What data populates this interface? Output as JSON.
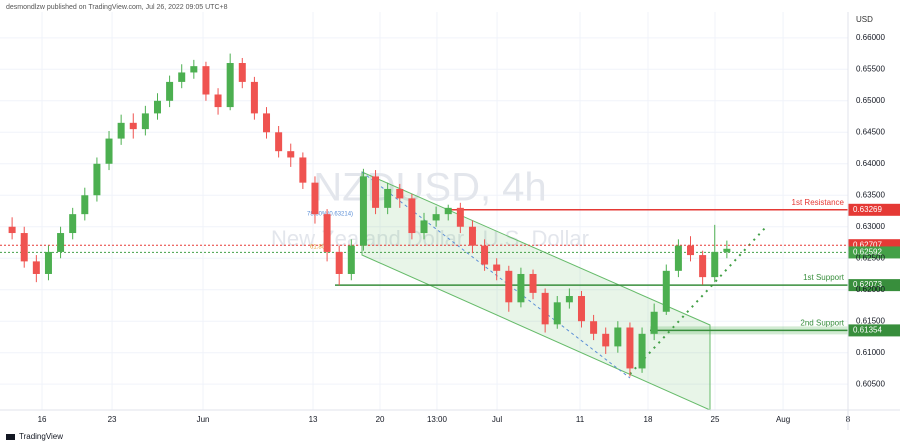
{
  "chart_data": {
    "type": "candlestick",
    "header": "desmondlzw published on TradingView.com, Jul 26, 2022 09:05 UTC+8",
    "watermark": "NZDUSD, 4h",
    "watermark_subtitle": "New Zealand Dollar / U.S. Dollar",
    "currency": "USD",
    "footer": "TradingView",
    "annotations": [
      "78.60%(0.63214)",
      "61.80%"
    ],
    "x": [
      1,
      2,
      3,
      4,
      5,
      6,
      7,
      8,
      9,
      10,
      11,
      12,
      13,
      14,
      15,
      16,
      17,
      18,
      19,
      20,
      21,
      22,
      23,
      24,
      25,
      26,
      27,
      28,
      29,
      30,
      31,
      32,
      33,
      34,
      35,
      36,
      37,
      38,
      39,
      40,
      41,
      42,
      43,
      44,
      45,
      46,
      47,
      48,
      49,
      50,
      51,
      52,
      53,
      54,
      55,
      56,
      57,
      58,
      59,
      60
    ],
    "open": [
      0.63,
      0.629,
      0.6245,
      0.6225,
      0.626,
      0.629,
      0.632,
      0.635,
      0.64,
      0.644,
      0.6465,
      0.6455,
      0.648,
      0.65,
      0.653,
      0.6545,
      0.6555,
      0.651,
      0.649,
      0.656,
      0.653,
      0.648,
      0.645,
      0.642,
      0.641,
      0.637,
      0.632,
      0.626,
      0.6225,
      0.627,
      0.638,
      0.633,
      0.636,
      0.6345,
      0.629,
      0.631,
      0.632,
      0.633,
      0.63,
      0.627,
      0.624,
      0.623,
      0.618,
      0.6225,
      0.6195,
      0.6145,
      0.618,
      0.619,
      0.615,
      0.613,
      0.611,
      0.614,
      0.6075,
      0.613,
      0.6165,
      0.623,
      0.627,
      0.6255,
      0.622,
      0.626
    ],
    "high": [
      0.6315,
      0.63,
      0.6255,
      0.627,
      0.63,
      0.633,
      0.6362,
      0.641,
      0.6452,
      0.6478,
      0.648,
      0.6492,
      0.6512,
      0.654,
      0.6558,
      0.6565,
      0.6562,
      0.652,
      0.6575,
      0.6568,
      0.6538,
      0.649,
      0.646,
      0.6432,
      0.6418,
      0.638,
      0.6328,
      0.627,
      0.628,
      0.6392,
      0.639,
      0.637,
      0.6368,
      0.6352,
      0.6322,
      0.6332,
      0.6335,
      0.6338,
      0.631,
      0.628,
      0.625,
      0.6238,
      0.6235,
      0.6232,
      0.6202,
      0.619,
      0.6202,
      0.6198,
      0.616,
      0.614,
      0.615,
      0.6148,
      0.614,
      0.6178,
      0.624,
      0.628,
      0.6285,
      0.6262,
      0.6303,
      0.6278
    ],
    "low": [
      0.628,
      0.6235,
      0.6212,
      0.6215,
      0.625,
      0.628,
      0.631,
      0.634,
      0.639,
      0.643,
      0.644,
      0.6445,
      0.647,
      0.649,
      0.652,
      0.6535,
      0.65,
      0.6478,
      0.6485,
      0.652,
      0.647,
      0.644,
      0.641,
      0.6395,
      0.636,
      0.6305,
      0.6245,
      0.6207,
      0.6215,
      0.6262,
      0.632,
      0.632,
      0.633,
      0.628,
      0.628,
      0.63,
      0.631,
      0.629,
      0.6258,
      0.623,
      0.6215,
      0.6165,
      0.6172,
      0.6185,
      0.6132,
      0.6138,
      0.617,
      0.614,
      0.612,
      0.6098,
      0.61,
      0.6062,
      0.6068,
      0.612,
      0.616,
      0.622,
      0.6245,
      0.6208,
      0.6212,
      0.625
    ],
    "close": [
      0.629,
      0.6245,
      0.6225,
      0.626,
      0.629,
      0.632,
      0.635,
      0.64,
      0.644,
      0.6465,
      0.6455,
      0.648,
      0.65,
      0.653,
      0.6545,
      0.6555,
      0.651,
      0.649,
      0.656,
      0.653,
      0.648,
      0.645,
      0.642,
      0.641,
      0.637,
      0.632,
      0.626,
      0.6225,
      0.627,
      0.638,
      0.633,
      0.636,
      0.6345,
      0.629,
      0.631,
      0.632,
      0.633,
      0.63,
      0.627,
      0.624,
      0.623,
      0.618,
      0.6225,
      0.6195,
      0.6145,
      0.618,
      0.619,
      0.615,
      0.613,
      0.611,
      0.614,
      0.6075,
      0.613,
      0.6165,
      0.623,
      0.627,
      0.6255,
      0.622,
      0.626,
      0.6265
    ],
    "up_color": "#4caf50",
    "down_color": "#ef5350",
    "xlim": [
      0,
      70
    ],
    "xticks": [
      {
        "value": 3.47,
        "label": "16"
      },
      {
        "value": 9.25,
        "label": "23"
      },
      {
        "value": 16.76,
        "label": "Jun"
      },
      {
        "value": 25.84,
        "label": "13"
      },
      {
        "value": 31.37,
        "label": "20"
      },
      {
        "value": 36.07,
        "label": "13:00"
      },
      {
        "value": 41.03,
        "label": "Jul"
      },
      {
        "value": 47.88,
        "label": "11"
      },
      {
        "value": 53.49,
        "label": "18"
      },
      {
        "value": 59.02,
        "label": "25"
      },
      {
        "value": 64.64,
        "label": "Aug"
      },
      {
        "value": 70,
        "label": "8"
      }
    ],
    "ylim": [
      0.6009,
      0.6641
    ],
    "yticks": [
      {
        "value": 0.66,
        "label": "0.66000"
      },
      {
        "value": 0.655,
        "label": "0.65500"
      },
      {
        "value": 0.65,
        "label": "0.65000"
      },
      {
        "value": 0.645,
        "label": "0.64500"
      },
      {
        "value": 0.64,
        "label": "0.64000"
      },
      {
        "value": 0.635,
        "label": "0.63500"
      },
      {
        "value": 0.63,
        "label": "0.63000"
      },
      {
        "value": 0.625,
        "label": "0.62500"
      },
      {
        "value": 0.62,
        "label": "0.62000"
      },
      {
        "value": 0.615,
        "label": "0.61500"
      },
      {
        "value": 0.61,
        "label": "0.61000"
      },
      {
        "value": 0.605,
        "label": "0.60500"
      }
    ],
    "grid": true,
    "levels": [
      {
        "name": "1st Resistance",
        "value": 0.63269,
        "color": "#e53935"
      },
      {
        "value": 0.62707,
        "color": "#e53935"
      },
      {
        "value": 0.62592,
        "color": "#43a047"
      },
      {
        "name": "1st Support",
        "value": 0.62073,
        "color": "#388e3c"
      },
      {
        "name": "2nd Support",
        "value": 0.61354,
        "color": "#388e3c"
      }
    ]
  }
}
